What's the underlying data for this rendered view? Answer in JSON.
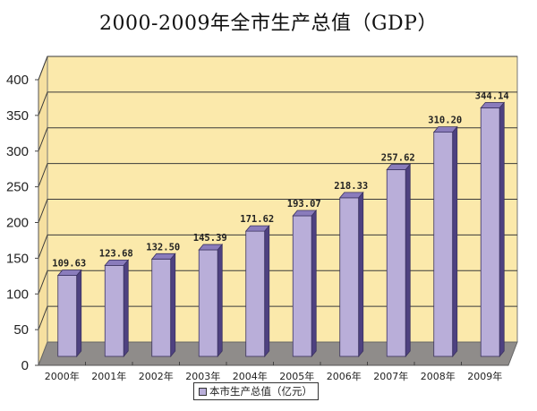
{
  "chart_data": {
    "type": "bar",
    "style": "3d-column",
    "title": "2000-2009年全市生产总值（GDP）",
    "xlabel": "",
    "ylabel": "",
    "categories": [
      "2000年",
      "2001年",
      "2002年",
      "2003年",
      "2004年",
      "2005年",
      "2006年",
      "2007年",
      "2008年",
      "2009年"
    ],
    "series": [
      {
        "name": "本市生产总值（亿元）",
        "values": [
          109.63,
          123.68,
          132.5,
          145.39,
          171.62,
          193.07,
          218.33,
          257.62,
          310.2,
          344.14
        ],
        "data_labels": [
          "109.63",
          "123.68",
          "132.50",
          "145.39",
          "171.62",
          "193.07",
          "218.33",
          "257.62",
          "310.20",
          "344.14"
        ],
        "color": "#b9aed9"
      }
    ],
    "ylim": [
      0,
      400
    ],
    "yticks": [
      0,
      50,
      100,
      150,
      200,
      250,
      300,
      350,
      400
    ],
    "ytick_labels": [
      "0",
      "50",
      "100",
      "150",
      "200",
      "250",
      "300",
      "350",
      "400"
    ],
    "grid": true,
    "legend": {
      "position": "bottom-center",
      "label": "本市生产总值（亿元）"
    },
    "colors": {
      "back_wall": "#fbe9ab",
      "side_wall": "#f6e0a0",
      "floor": "#8f8c8a",
      "bar_front": "#b9aed9",
      "bar_top": "#8a7cbc",
      "bar_side": "#4e4180",
      "gridline": "#3a3a3a"
    }
  }
}
